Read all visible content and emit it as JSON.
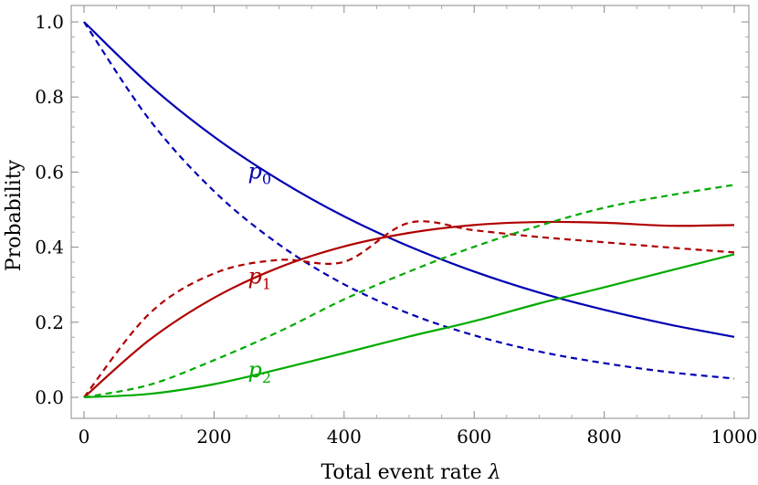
{
  "chart_data": {
    "type": "line",
    "title": "",
    "xlabel": "Total event rate",
    "xlabel_symbol": "λ",
    "ylabel": "Probability",
    "xlim": [
      0,
      1000
    ],
    "ylim": [
      0,
      1
    ],
    "xticks": [
      0,
      200,
      400,
      600,
      800,
      1000
    ],
    "xtick_labels": [
      "0",
      "200",
      "400",
      "600",
      "800",
      "1000"
    ],
    "yticks": [
      0,
      0.2,
      0.4,
      0.6,
      0.8,
      1.0
    ],
    "ytick_labels": [
      "0.0",
      "0.2",
      "0.4",
      "0.6",
      "0.8",
      "1.0"
    ],
    "grid": false,
    "x": [
      0,
      100,
      200,
      300,
      400,
      500,
      600,
      700,
      800,
      900,
      1000
    ],
    "series": [
      {
        "name": "p0",
        "style": "solid",
        "color": "#0000b4",
        "values": [
          1.0,
          0.833,
          0.694,
          0.579,
          0.482,
          0.402,
          0.335,
          0.279,
          0.233,
          0.194,
          0.161
        ]
      },
      {
        "name": "p0",
        "style": "dashed",
        "color": "#0000b4",
        "values": [
          1.0,
          0.741,
          0.549,
          0.407,
          0.301,
          0.223,
          0.165,
          0.122,
          0.091,
          0.067,
          0.05
        ]
      },
      {
        "name": "p1",
        "style": "solid",
        "color": "#b00000",
        "values": [
          0.0,
          0.152,
          0.265,
          0.346,
          0.402,
          0.438,
          0.459,
          0.467,
          0.465,
          0.457,
          0.459
        ]
      },
      {
        "name": "p1",
        "style": "dashed",
        "color": "#b00000",
        "values": [
          0.0,
          0.222,
          0.33,
          0.366,
          0.361,
          0.465,
          0.445,
          0.427,
          0.413,
          0.399,
          0.386
        ]
      },
      {
        "name": "p2",
        "style": "solid",
        "color": "#00aa00",
        "values": [
          0.0,
          0.009,
          0.035,
          0.075,
          0.118,
          0.162,
          0.203,
          0.25,
          0.293,
          0.337,
          0.381
        ]
      },
      {
        "name": "p2",
        "style": "dashed",
        "color": "#00aa00",
        "values": [
          0.0,
          0.033,
          0.099,
          0.175,
          0.261,
          0.335,
          0.401,
          0.457,
          0.505,
          0.538,
          0.566
        ]
      }
    ],
    "annotations": [
      {
        "series": "p0",
        "base": "p",
        "sub": "0",
        "color": "#0000b4",
        "at_x": 270,
        "at_y": 0.6
      },
      {
        "series": "p1",
        "base": "p",
        "sub": "1",
        "color": "#b00000",
        "at_x": 270,
        "at_y": 0.32
      },
      {
        "series": "p2",
        "base": "p",
        "sub": "2",
        "color": "#00aa00",
        "at_x": 270,
        "at_y": 0.07
      }
    ]
  }
}
